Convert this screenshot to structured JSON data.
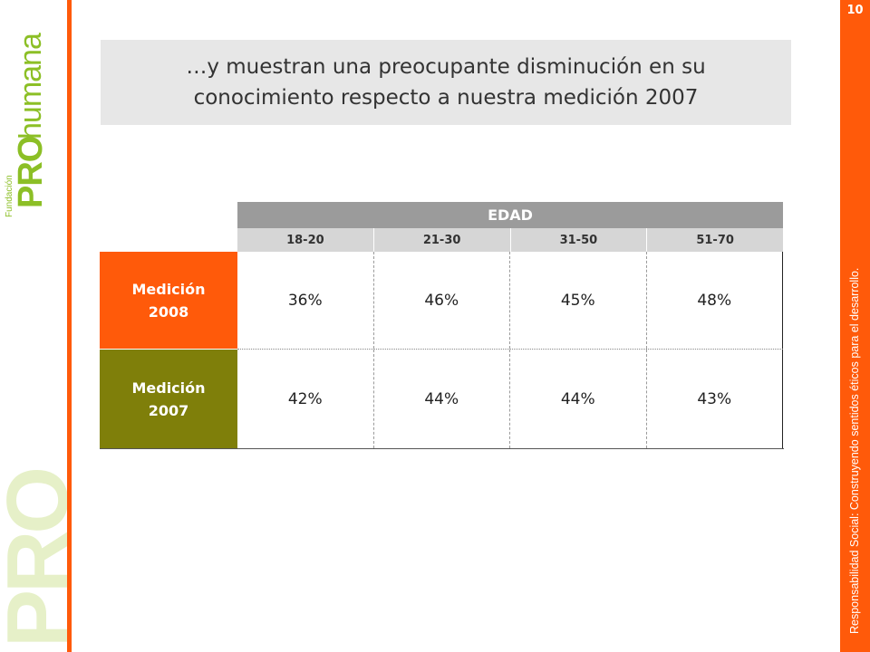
{
  "page_number": "10",
  "brand": {
    "fundacion": "Fundación",
    "pro": "PRO",
    "humana": "humana",
    "watermark": "PRO"
  },
  "tagline": "Responsabilidad Social: Construyendo sentidos éticos para el desarrollo.",
  "title": {
    "line1": "…y muestran una preocupante disminución en su",
    "line2": "conocimiento respecto a nuestra medición 2007"
  },
  "table": {
    "group_header": "EDAD",
    "age_groups": [
      "18-20",
      "21-30",
      "31-50",
      "51-70"
    ],
    "rows": [
      {
        "label_line1": "Medición",
        "label_line2": "2008",
        "values": [
          "36%",
          "46%",
          "45%",
          "48%"
        ]
      },
      {
        "label_line1": "Medición",
        "label_line2": "2007",
        "values": [
          "42%",
          "44%",
          "44%",
          "43%"
        ]
      }
    ]
  },
  "colors": {
    "orange": "#ff5a0a",
    "olive": "#7f7f0a",
    "header_gray": "#9b9b9b",
    "subheader_gray": "#d6d6d6",
    "title_bg": "#e7e7e7",
    "brand_green": "#8cbf26"
  }
}
